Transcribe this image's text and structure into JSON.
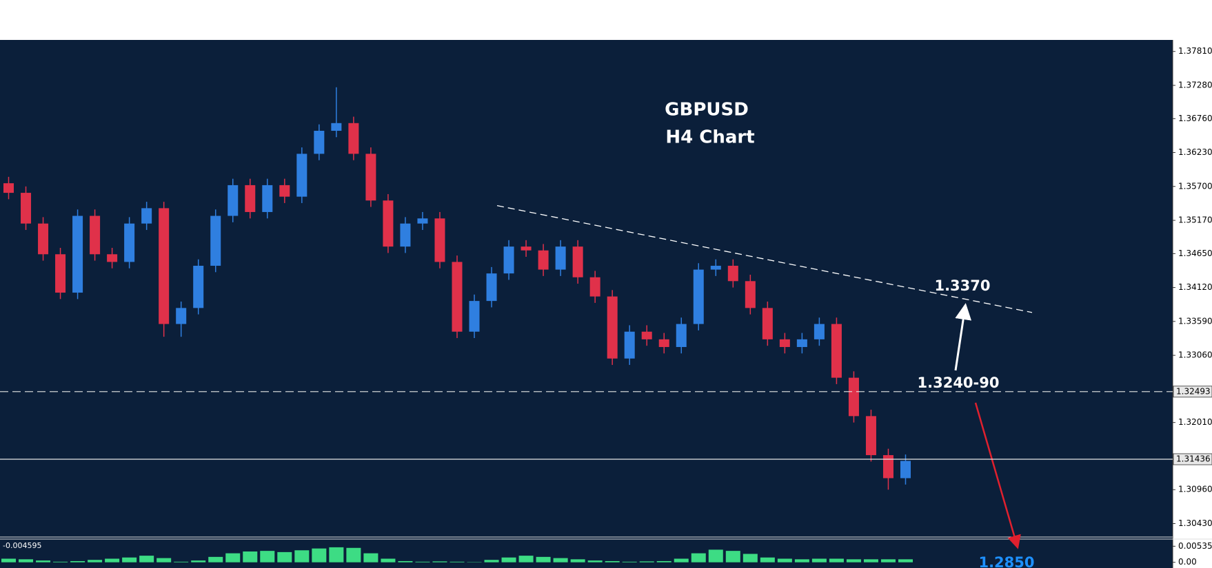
{
  "chart_data": {
    "type": "candlestick",
    "title": "GBPUSD",
    "subtitle": "H4 Chart",
    "up_color": "#2f7fe0",
    "down_color": "#e0314a",
    "background": "#0b1f3a",
    "open": [
      1.3575,
      1.356,
      1.3512,
      1.3464,
      1.3404,
      1.3524,
      1.3464,
      1.3452,
      1.3512,
      1.3536,
      1.3355,
      1.338,
      1.3446,
      1.3524,
      1.3572,
      1.353,
      1.3572,
      1.3554,
      1.3621,
      1.3657,
      1.3669,
      1.3621,
      1.3548,
      1.3476,
      1.3512,
      1.352,
      1.3452,
      1.3343,
      1.3391,
      1.3434,
      1.3476,
      1.347,
      1.344,
      1.3476,
      1.3428,
      1.3398,
      1.3301,
      1.3343,
      1.3331,
      1.3319,
      1.3355,
      1.344,
      1.3446,
      1.3422,
      1.338,
      1.3331,
      1.3319,
      1.3331,
      1.3355,
      1.3271,
      1.3211,
      1.315,
      1.3114
    ],
    "high": [
      1.3585,
      1.357,
      1.3522,
      1.3474,
      1.3534,
      1.3534,
      1.3474,
      1.3522,
      1.3546,
      1.3546,
      1.339,
      1.3456,
      1.3534,
      1.3582,
      1.3582,
      1.3582,
      1.3582,
      1.3631,
      1.3667,
      1.3725,
      1.3679,
      1.3631,
      1.3558,
      1.3522,
      1.353,
      1.353,
      1.3462,
      1.3401,
      1.3444,
      1.3486,
      1.3486,
      1.348,
      1.3486,
      1.3486,
      1.3438,
      1.3408,
      1.3353,
      1.3353,
      1.3341,
      1.3365,
      1.345,
      1.3456,
      1.3456,
      1.3432,
      1.339,
      1.3341,
      1.3341,
      1.3365,
      1.3365,
      1.3281,
      1.3221,
      1.316,
      1.3151
    ],
    "low": [
      1.355,
      1.3502,
      1.3454,
      1.3394,
      1.3394,
      1.3454,
      1.3442,
      1.3442,
      1.3502,
      1.3335,
      1.3335,
      1.337,
      1.3436,
      1.3514,
      1.352,
      1.352,
      1.3544,
      1.3544,
      1.3611,
      1.3647,
      1.3611,
      1.3538,
      1.3466,
      1.3466,
      1.3502,
      1.3442,
      1.3333,
      1.3333,
      1.3381,
      1.3424,
      1.346,
      1.343,
      1.343,
      1.3418,
      1.3388,
      1.3291,
      1.3291,
      1.3321,
      1.3309,
      1.3309,
      1.3345,
      1.343,
      1.3412,
      1.337,
      1.3321,
      1.3309,
      1.3309,
      1.3321,
      1.3261,
      1.3201,
      1.314,
      1.3096,
      1.3104
    ],
    "close": [
      1.356,
      1.3512,
      1.3464,
      1.3404,
      1.3524,
      1.3464,
      1.3452,
      1.3512,
      1.3536,
      1.3355,
      1.338,
      1.3446,
      1.3524,
      1.3572,
      1.353,
      1.3572,
      1.3554,
      1.3621,
      1.3657,
      1.3669,
      1.3621,
      1.3548,
      1.3476,
      1.3512,
      1.352,
      1.3452,
      1.3343,
      1.3391,
      1.3434,
      1.3476,
      1.347,
      1.344,
      1.3476,
      1.3428,
      1.3398,
      1.3301,
      1.3343,
      1.3331,
      1.3319,
      1.3355,
      1.344,
      1.3446,
      1.3422,
      1.338,
      1.3331,
      1.3319,
      1.3331,
      1.3355,
      1.3271,
      1.3211,
      1.315,
      1.3114,
      1.3141
    ],
    "ylim": [
      1.3022,
      1.3799
    ],
    "yticks": [
      {
        "value": 1.3781,
        "label": "1.37810"
      },
      {
        "value": 1.3728,
        "label": "1.37280"
      },
      {
        "value": 1.3676,
        "label": "1.36760"
      },
      {
        "value": 1.3623,
        "label": "1.36230"
      },
      {
        "value": 1.357,
        "label": "1.35700"
      },
      {
        "value": 1.3517,
        "label": "1.35170"
      },
      {
        "value": 1.3465,
        "label": "1.34650"
      },
      {
        "value": 1.3412,
        "label": "1.34120"
      },
      {
        "value": 1.3359,
        "label": "1.33590"
      },
      {
        "value": 1.3306,
        "label": "1.33060"
      },
      {
        "value": 1.3201,
        "label": "1.32010"
      },
      {
        "value": 1.3096,
        "label": "1.30960"
      },
      {
        "value": 1.3043,
        "label": "1.30430"
      }
    ],
    "price_lines": [
      {
        "value": 1.32493,
        "label": "1.32493",
        "style": "dashed"
      },
      {
        "value": 1.31436,
        "label": "1.31436",
        "style": "solid"
      }
    ],
    "trendline": [
      1.354,
      1.3373
    ],
    "annotations": [
      "1.3370",
      "1.3240-90",
      "1.2850"
    ],
    "indicator": {
      "label": "-0.004595",
      "color": "#3ddc84",
      "values": [
        0.0012,
        0.001,
        0.0006,
        0.0002,
        0.0004,
        0.0008,
        0.0012,
        0.0016,
        0.0022,
        0.0014,
        0.0002,
        0.0006,
        0.0018,
        0.003,
        0.0036,
        0.0038,
        0.0034,
        0.004,
        0.0046,
        0.005,
        0.0048,
        0.003,
        0.0012,
        0.0004,
        0.0002,
        0.0003,
        0.0002,
        0.0001,
        0.0008,
        0.0016,
        0.0022,
        0.0018,
        0.0014,
        0.001,
        0.0006,
        0.0004,
        0.0002,
        0.0003,
        0.0004,
        0.0012,
        0.003,
        0.0042,
        0.0038,
        0.0028,
        0.0016,
        0.0012,
        0.001,
        0.0012,
        0.0012,
        0.001,
        0.001,
        0.001,
        0.001
      ],
      "ylim": [
        -0.0019,
        0.0075
      ],
      "yticks": [
        {
          "value": 0.005354,
          "label": "0.005354"
        },
        {
          "value": 0,
          "label": "0.00"
        }
      ]
    }
  }
}
